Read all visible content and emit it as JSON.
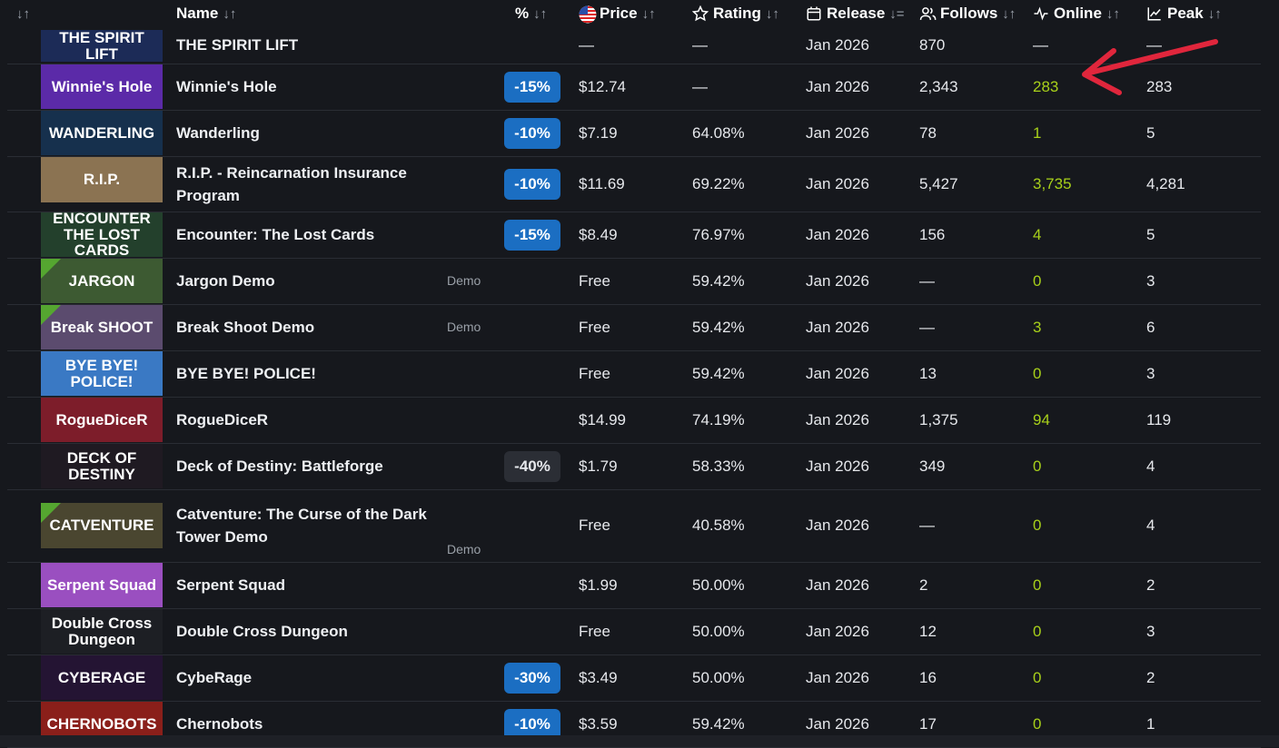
{
  "header": {
    "corner_sort": "↓↑",
    "columns": [
      {
        "key": "name",
        "label": "Name",
        "sort": "↓↑",
        "icon": ""
      },
      {
        "key": "pct",
        "label": "%",
        "sort": "↓↑",
        "icon": ""
      },
      {
        "key": "price",
        "label": "Price",
        "sort": "↓↑",
        "icon": "us-flag-icon"
      },
      {
        "key": "rating",
        "label": "Rating",
        "sort": "↓↑",
        "icon": "star-icon"
      },
      {
        "key": "release",
        "label": "Release",
        "sort": "↓=",
        "icon": "calendar-icon"
      },
      {
        "key": "follows",
        "label": "Follows",
        "sort": "↓↑",
        "icon": "users-icon"
      },
      {
        "key": "online",
        "label": "Online",
        "sort": "↓↑",
        "icon": "activity-icon"
      },
      {
        "key": "peak",
        "label": "Peak",
        "sort": "↓↑",
        "icon": "chart-line-icon"
      }
    ]
  },
  "colors": {
    "background": "#16181d",
    "discount_badge": "#1b6ec2",
    "online_text": "#a8d01a",
    "arrow": "#e0263c",
    "demo_corner": "#55a630"
  },
  "rows": [
    {
      "name": "THE SPIRIT LIFT",
      "tag": "",
      "discount": "",
      "price": "—",
      "rating": "—",
      "release": "Jan 2026",
      "follows": "870",
      "online": "—",
      "peak": "—",
      "thumb_text": "THE SPIRIT LIFT",
      "thumb_bg": "#1c2b57"
    },
    {
      "name": "Winnie's Hole",
      "tag": "",
      "discount": "-15%",
      "price": "$12.74",
      "rating": "—",
      "release": "Jan 2026",
      "follows": "2,343",
      "online": "283",
      "peak": "283",
      "thumb_text": "Winnie's Hole",
      "thumb_bg": "#5b2aa8"
    },
    {
      "name": "Wanderling",
      "tag": "",
      "discount": "-10%",
      "price": "$7.19",
      "rating": "64.08%",
      "release": "Jan 2026",
      "follows": "78",
      "online": "1",
      "peak": "5",
      "thumb_text": "WANDERLING",
      "thumb_bg": "#16304d"
    },
    {
      "name": "R.I.P. - Reincarnation Insurance Program",
      "tag": "",
      "discount": "-10%",
      "price": "$11.69",
      "rating": "69.22%",
      "release": "Jan 2026",
      "follows": "5,427",
      "online": "3,735",
      "peak": "4,281",
      "thumb_text": "R.I.P.",
      "thumb_bg": "#8b7352"
    },
    {
      "name": "Encounter: The Lost Cards",
      "tag": "",
      "discount": "-15%",
      "price": "$8.49",
      "rating": "76.97%",
      "release": "Jan 2026",
      "follows": "156",
      "online": "4",
      "peak": "5",
      "thumb_text": "ENCOUNTER THE LOST CARDS",
      "thumb_bg": "#23402c"
    },
    {
      "name": "Jargon Demo",
      "tag": "Demo",
      "discount": "",
      "price": "Free",
      "rating": "59.42%",
      "release": "Jan 2026",
      "follows": "—",
      "online": "0",
      "peak": "3",
      "thumb_text": "JARGON",
      "thumb_bg": "#3d5a32"
    },
    {
      "name": "Break Shoot Demo",
      "tag": "Demo",
      "discount": "",
      "price": "Free",
      "rating": "59.42%",
      "release": "Jan 2026",
      "follows": "—",
      "online": "3",
      "peak": "6",
      "thumb_text": "Break SHOOT",
      "thumb_bg": "#5b4b6e"
    },
    {
      "name": "BYE BYE! POLICE!",
      "tag": "",
      "discount": "",
      "price": "Free",
      "rating": "59.42%",
      "release": "Jan 2026",
      "follows": "13",
      "online": "0",
      "peak": "3",
      "thumb_text": "BYE BYE! POLICE!",
      "thumb_bg": "#3a79c4"
    },
    {
      "name": "RogueDiceR",
      "tag": "",
      "discount": "",
      "price": "$14.99",
      "rating": "74.19%",
      "release": "Jan 2026",
      "follows": "1,375",
      "online": "94",
      "peak": "119",
      "thumb_text": "RogueDiceR",
      "thumb_bg": "#7d1d2a"
    },
    {
      "name": "Deck of Destiny: Battleforge",
      "tag": "",
      "discount": "-40%",
      "price": "$1.79",
      "rating": "58.33%",
      "release": "Jan 2026",
      "follows": "349",
      "online": "0",
      "peak": "4",
      "thumb_text": "DECK OF DESTINY",
      "thumb_bg": "#1f1a22"
    },
    {
      "name": "Catventure: The Curse of the Dark Tower Demo",
      "tag": "Demo",
      "discount": "",
      "price": "Free",
      "rating": "40.58%",
      "release": "Jan 2026",
      "follows": "—",
      "online": "0",
      "peak": "4",
      "thumb_text": "CATVENTURE",
      "thumb_bg": "#4a4630"
    },
    {
      "name": "Serpent Squad",
      "tag": "",
      "discount": "",
      "price": "$1.99",
      "rating": "50.00%",
      "release": "Jan 2026",
      "follows": "2",
      "online": "0",
      "peak": "2",
      "thumb_text": "Serpent Squad",
      "thumb_bg": "#9a4fc0"
    },
    {
      "name": "Double Cross Dungeon",
      "tag": "",
      "discount": "",
      "price": "Free",
      "rating": "50.00%",
      "release": "Jan 2026",
      "follows": "12",
      "online": "0",
      "peak": "3",
      "thumb_text": "Double Cross Dungeon",
      "thumb_bg": "#1d1f24"
    },
    {
      "name": "CybeRage",
      "tag": "",
      "discount": "-30%",
      "price": "$3.49",
      "rating": "50.00%",
      "release": "Jan 2026",
      "follows": "16",
      "online": "0",
      "peak": "2",
      "thumb_text": "CYBERAGE",
      "thumb_bg": "#241433"
    },
    {
      "name": "Chernobots",
      "tag": "",
      "discount": "-10%",
      "price": "$3.59",
      "rating": "59.42%",
      "release": "Jan 2026",
      "follows": "17",
      "online": "0",
      "peak": "1",
      "thumb_text": "CHERNOBOTS",
      "thumb_bg": "#8a1f1a"
    }
  ]
}
